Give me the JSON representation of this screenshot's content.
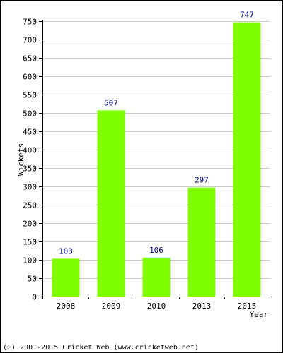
{
  "chart_data": {
    "type": "bar",
    "categories": [
      "2008",
      "2009",
      "2010",
      "2013",
      "2015"
    ],
    "values": [
      103,
      507,
      106,
      297,
      747
    ],
    "data_labels": [
      "103",
      "507",
      "106",
      "297",
      "747"
    ],
    "xlabel": "Year",
    "ylabel": "Wickets",
    "ylim": [
      0,
      750
    ],
    "yticks": [
      0,
      50,
      100,
      150,
      200,
      250,
      300,
      350,
      400,
      450,
      500,
      550,
      600,
      650,
      700,
      750
    ],
    "grid": true,
    "legend": "none",
    "bar_color": "#80ff00",
    "data_label_color": "#000080"
  },
  "footer": "(C) 2001-2015 Cricket Web (www.cricketweb.net)"
}
